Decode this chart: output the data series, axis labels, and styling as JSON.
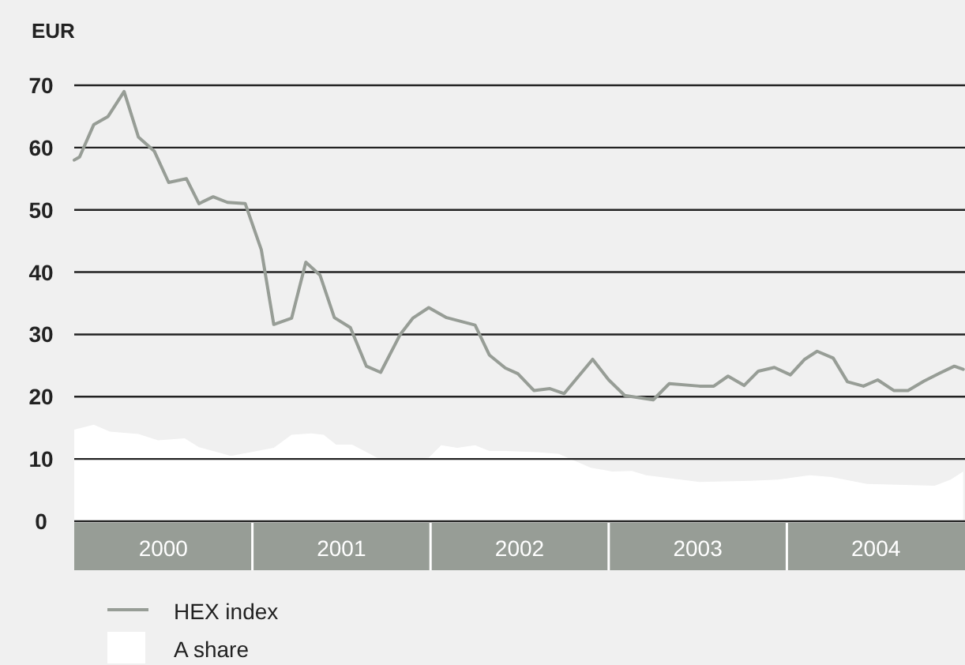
{
  "chart_data": {
    "type": "line",
    "ylabel": "EUR",
    "xlim": [
      2000,
      2005
    ],
    "ylim": [
      0,
      70
    ],
    "yticks": [
      0,
      10,
      20,
      30,
      40,
      50,
      60,
      70
    ],
    "xticks": [
      {
        "value": 2000.5,
        "label": "2000"
      },
      {
        "value": 2001.5,
        "label": "2001"
      },
      {
        "value": 2002.5,
        "label": "2002"
      },
      {
        "value": 2003.5,
        "label": "2003"
      },
      {
        "value": 2004.5,
        "label": "2004"
      }
    ],
    "grid": "y",
    "legend": "bottom",
    "series": [
      {
        "name": "HEX index",
        "type": "line",
        "color": "#979d96",
        "x": [
          2000,
          2000.03,
          2000.11,
          2000.19,
          2000.28,
          2000.36,
          2000.45,
          2000.53,
          2000.63,
          2000.7,
          2000.78,
          2000.86,
          2000.96,
          2001.05,
          2001.12,
          2001.22,
          2001.3,
          2001.38,
          2001.46,
          2001.55,
          2001.64,
          2001.72,
          2001.83,
          2001.9,
          2001.99,
          2002.09,
          2002.17,
          2002.25,
          2002.33,
          2002.42,
          2002.49,
          2002.58,
          2002.67,
          2002.75,
          2002.91,
          2003,
          2003.09,
          2003.25,
          2003.34,
          2003.51,
          2003.59,
          2003.67,
          2003.76,
          2003.84,
          2003.93,
          2004.02,
          2004.1,
          2004.17,
          2004.26,
          2004.34,
          2004.43,
          2004.51,
          2004.6,
          2004.68,
          2004.77,
          2004.86,
          2004.94,
          2004.99
        ],
        "values": [
          58,
          58.5,
          63.7,
          65,
          69,
          61.7,
          59.4,
          54.4,
          55,
          51,
          52.1,
          51.2,
          51,
          43.6,
          31.6,
          32.6,
          41.6,
          39.5,
          32.7,
          31.1,
          24.9,
          23.9,
          30,
          32.6,
          34.3,
          32.7,
          32.1,
          31.5,
          26.7,
          24.6,
          23.7,
          21,
          21.3,
          20.5,
          26,
          22.7,
          20.2,
          19.5,
          22.1,
          21.7,
          21.7,
          23.3,
          21.8,
          24.1,
          24.7,
          23.5,
          26,
          27.3,
          26.2,
          22.4,
          21.7,
          22.7,
          21,
          21,
          22.5,
          23.8,
          24.9,
          24.4
        ]
      },
      {
        "name": "A share",
        "type": "area",
        "color": "#ffffff",
        "x": [
          2000,
          2000.11,
          2000.2,
          2000.36,
          2000.47,
          2000.62,
          2000.7,
          2000.88,
          2001.12,
          2001.22,
          2001.33,
          2001.4,
          2001.47,
          2001.56,
          2001.7,
          2001.83,
          2001.99,
          2002.06,
          2002.15,
          2002.25,
          2002.33,
          2002.42,
          2002.6,
          2002.72,
          2002.9,
          2003.02,
          2003.13,
          2003.21,
          2003.51,
          2003.8,
          2003.95,
          2004.13,
          2004.25,
          2004.45,
          2004.83,
          2004.92,
          2004.99
        ],
        "values": [
          14.7,
          15.5,
          14.4,
          14,
          13,
          13.3,
          11.9,
          10.5,
          11.8,
          13.9,
          14.1,
          13.9,
          12.3,
          12.3,
          10.2,
          9.9,
          10.2,
          12.2,
          11.8,
          12.2,
          11.3,
          11.3,
          11.1,
          10.8,
          8.6,
          8,
          8.1,
          7.4,
          6.3,
          6.5,
          6.7,
          7.4,
          7.1,
          6,
          5.7,
          6.7,
          8
        ]
      }
    ]
  }
}
